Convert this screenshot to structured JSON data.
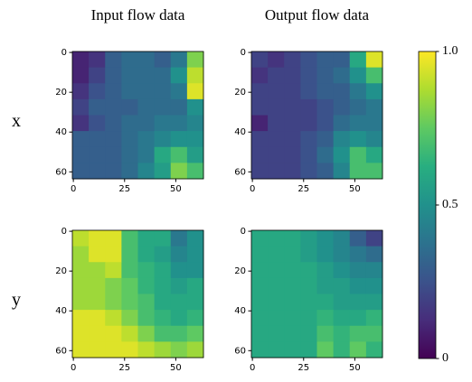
{
  "chart_data": [
    {
      "type": "heatmap",
      "title": "Input flow data",
      "row_label": "x",
      "colormap": "viridis",
      "clim": [
        0,
        1
      ],
      "xlim": [
        -0.5,
        63.5
      ],
      "ylim": [
        63.5,
        -0.5
      ],
      "xticks": [
        0,
        25,
        50
      ],
      "yticks": [
        0,
        20,
        40,
        60
      ],
      "values": [
        [
          0.1,
          0.15,
          0.3,
          0.35,
          0.35,
          0.3,
          0.4,
          0.8
        ],
        [
          0.1,
          0.2,
          0.3,
          0.35,
          0.35,
          0.35,
          0.5,
          0.9
        ],
        [
          0.15,
          0.25,
          0.3,
          0.35,
          0.35,
          0.35,
          0.4,
          0.95
        ],
        [
          0.2,
          0.3,
          0.3,
          0.3,
          0.35,
          0.35,
          0.35,
          0.5
        ],
        [
          0.15,
          0.25,
          0.3,
          0.35,
          0.35,
          0.4,
          0.4,
          0.45
        ],
        [
          0.3,
          0.3,
          0.3,
          0.35,
          0.4,
          0.45,
          0.5,
          0.5
        ],
        [
          0.3,
          0.3,
          0.3,
          0.35,
          0.4,
          0.6,
          0.7,
          0.55
        ],
        [
          0.3,
          0.3,
          0.3,
          0.35,
          0.45,
          0.55,
          0.8,
          0.7
        ]
      ]
    },
    {
      "type": "heatmap",
      "title": "Output flow data",
      "colormap": "viridis",
      "clim": [
        0,
        1
      ],
      "xlim": [
        -0.5,
        63.5
      ],
      "ylim": [
        63.5,
        -0.5
      ],
      "xticks": [
        0,
        25,
        50
      ],
      "yticks": [
        0,
        20,
        40,
        60
      ],
      "values": [
        [
          0.2,
          0.15,
          0.2,
          0.25,
          0.3,
          0.3,
          0.6,
          0.95
        ],
        [
          0.15,
          0.2,
          0.2,
          0.25,
          0.3,
          0.35,
          0.5,
          0.7
        ],
        [
          0.2,
          0.2,
          0.2,
          0.25,
          0.3,
          0.3,
          0.4,
          0.5
        ],
        [
          0.2,
          0.2,
          0.2,
          0.2,
          0.25,
          0.3,
          0.35,
          0.4
        ],
        [
          0.1,
          0.2,
          0.2,
          0.2,
          0.25,
          0.35,
          0.4,
          0.4
        ],
        [
          0.2,
          0.2,
          0.2,
          0.25,
          0.3,
          0.45,
          0.5,
          0.45
        ],
        [
          0.2,
          0.2,
          0.2,
          0.25,
          0.35,
          0.5,
          0.7,
          0.6
        ],
        [
          0.2,
          0.2,
          0.2,
          0.25,
          0.3,
          0.45,
          0.7,
          0.7
        ]
      ]
    },
    {
      "type": "heatmap",
      "row_label": "y",
      "colormap": "viridis",
      "clim": [
        0,
        1
      ],
      "xlim": [
        -0.5,
        63.5
      ],
      "ylim": [
        63.5,
        -0.5
      ],
      "xticks": [
        0,
        25,
        50
      ],
      "yticks": [
        0,
        20,
        40,
        60
      ],
      "values": [
        [
          0.9,
          0.95,
          0.95,
          0.7,
          0.6,
          0.6,
          0.4,
          0.5
        ],
        [
          0.85,
          0.95,
          0.95,
          0.7,
          0.6,
          0.55,
          0.45,
          0.5
        ],
        [
          0.85,
          0.85,
          0.9,
          0.7,
          0.65,
          0.6,
          0.5,
          0.5
        ],
        [
          0.85,
          0.85,
          0.8,
          0.75,
          0.65,
          0.6,
          0.55,
          0.6
        ],
        [
          0.85,
          0.85,
          0.8,
          0.75,
          0.7,
          0.6,
          0.6,
          0.6
        ],
        [
          0.95,
          0.95,
          0.9,
          0.8,
          0.7,
          0.65,
          0.6,
          0.65
        ],
        [
          0.95,
          0.95,
          0.95,
          0.9,
          0.8,
          0.7,
          0.7,
          0.75
        ],
        [
          0.95,
          0.95,
          0.95,
          0.95,
          0.9,
          0.85,
          0.8,
          0.85
        ]
      ]
    },
    {
      "type": "heatmap",
      "colormap": "viridis",
      "clim": [
        0,
        1
      ],
      "xlim": [
        -0.5,
        63.5
      ],
      "ylim": [
        63.5,
        -0.5
      ],
      "xticks": [
        0,
        25,
        50
      ],
      "yticks": [
        0,
        20,
        40,
        60
      ],
      "values": [
        [
          0.6,
          0.6,
          0.6,
          0.55,
          0.5,
          0.45,
          0.3,
          0.2
        ],
        [
          0.6,
          0.6,
          0.6,
          0.55,
          0.5,
          0.45,
          0.4,
          0.35
        ],
        [
          0.6,
          0.6,
          0.6,
          0.6,
          0.55,
          0.5,
          0.45,
          0.45
        ],
        [
          0.6,
          0.6,
          0.6,
          0.6,
          0.55,
          0.55,
          0.5,
          0.5
        ],
        [
          0.6,
          0.6,
          0.6,
          0.6,
          0.6,
          0.55,
          0.55,
          0.55
        ],
        [
          0.6,
          0.6,
          0.6,
          0.6,
          0.65,
          0.6,
          0.6,
          0.65
        ],
        [
          0.6,
          0.6,
          0.6,
          0.6,
          0.7,
          0.65,
          0.7,
          0.7
        ],
        [
          0.6,
          0.6,
          0.6,
          0.6,
          0.75,
          0.65,
          0.75,
          0.65
        ]
      ]
    },
    {
      "type": "colorbar",
      "colormap": "viridis",
      "ylim": [
        0,
        1
      ],
      "yticks": [
        0,
        0.5,
        {
          "value": 1,
          "label": "1.0"
        }
      ]
    }
  ]
}
